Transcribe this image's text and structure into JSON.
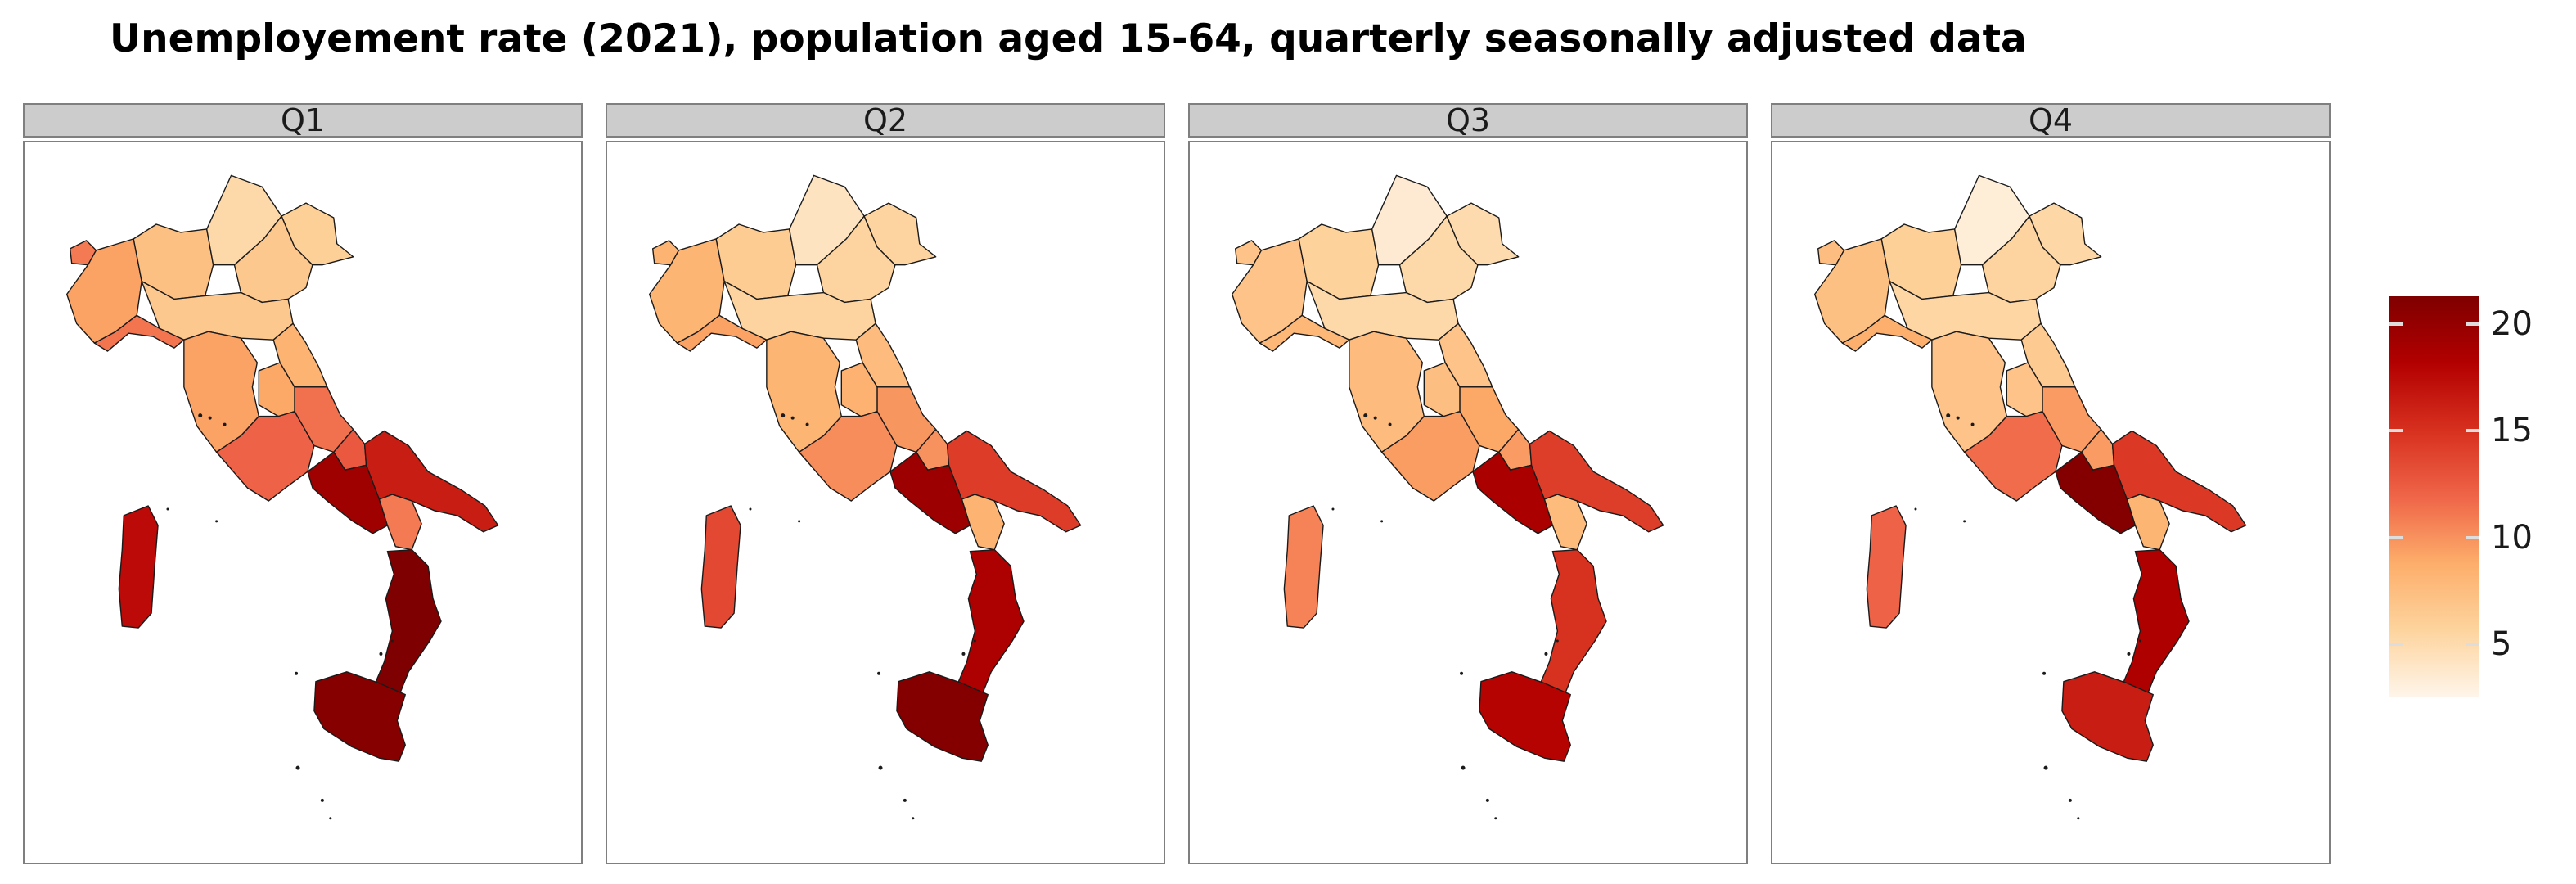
{
  "title": "Unemployement rate (2021), population aged 15-64, quarterly seasonally adjusted data",
  "colors": {
    "strip_bg": "#cccccc",
    "panel_border": "#7f7f7f",
    "region_outline": "#1a1a1a",
    "scale": [
      "#fff5eb",
      "#fdd49e",
      "#fdae6b",
      "#ef6548",
      "#d7301f",
      "#b30000",
      "#7f0000"
    ]
  },
  "chart_data": {
    "type": "choropleth",
    "title": "Unemployement rate (2021), population aged 15-64, quarterly seasonally adjusted data",
    "facets": [
      "Q1",
      "Q2",
      "Q3",
      "Q4"
    ],
    "legend": {
      "ticks": [
        5,
        10,
        15,
        20
      ],
      "range": [
        2.5,
        21.3
      ],
      "placement": "right"
    },
    "regions": [
      {
        "name": "Valle d'Aosta",
        "values": [
          11.0,
          8.3,
          7.0,
          7.5
        ]
      },
      {
        "name": "Piemonte",
        "values": [
          9.3,
          8.2,
          7.0,
          7.3
        ]
      },
      {
        "name": "Liguria",
        "values": [
          11.2,
          9.3,
          8.0,
          8.6
        ]
      },
      {
        "name": "Lombardia",
        "values": [
          7.3,
          6.3,
          5.8,
          6.0
        ]
      },
      {
        "name": "Trentino-Alto Adige",
        "values": [
          5.2,
          4.2,
          3.5,
          3.3
        ]
      },
      {
        "name": "Veneto",
        "values": [
          6.6,
          5.6,
          5.2,
          5.6
        ]
      },
      {
        "name": "Friuli-Venezia Giulia",
        "values": [
          6.0,
          5.6,
          5.0,
          5.3
        ]
      },
      {
        "name": "Emilia-Romagna",
        "values": [
          6.6,
          5.6,
          5.2,
          5.4
        ]
      },
      {
        "name": "Toscana",
        "values": [
          9.3,
          8.2,
          7.6,
          7.0
        ]
      },
      {
        "name": "Umbria",
        "values": [
          9.0,
          8.4,
          7.4,
          7.0
        ]
      },
      {
        "name": "Marche",
        "values": [
          8.3,
          7.6,
          7.0,
          6.4
        ]
      },
      {
        "name": "Lazio",
        "values": [
          12.0,
          10.2,
          9.5,
          11.6
        ]
      },
      {
        "name": "Abruzzo",
        "values": [
          11.4,
          9.8,
          9.0,
          9.6
        ]
      },
      {
        "name": "Molise",
        "values": [
          12.6,
          10.0,
          9.6,
          9.6
        ]
      },
      {
        "name": "Campania",
        "values": [
          19.4,
          19.5,
          18.7,
          21.0
        ]
      },
      {
        "name": "Puglia",
        "values": [
          16.3,
          14.3,
          14.2,
          14.5
        ]
      },
      {
        "name": "Basilicata",
        "values": [
          11.0,
          8.3,
          7.7,
          8.2
        ]
      },
      {
        "name": "Calabria",
        "values": [
          21.3,
          18.5,
          15.0,
          18.4
        ]
      },
      {
        "name": "Sicilia",
        "values": [
          20.9,
          21.0,
          18.0,
          16.3
        ]
      },
      {
        "name": "Sardegna",
        "values": [
          17.5,
          13.6,
          10.6,
          12.0
        ]
      }
    ]
  }
}
